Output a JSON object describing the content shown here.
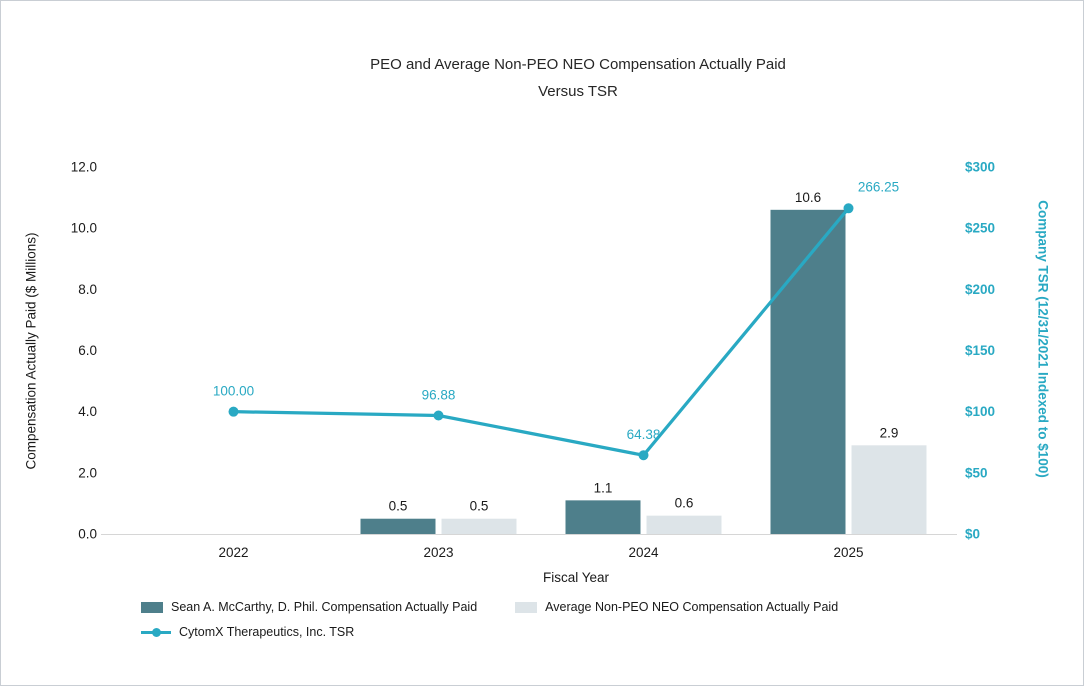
{
  "chart_data": {
    "type": "combo-bar-line",
    "title_line1": "PEO and Average Non-PEO NEO Compensation Actually Paid",
    "title_line2": "Versus TSR",
    "categories": [
      "2022",
      "2023",
      "2024",
      "2025"
    ],
    "bar_series": [
      {
        "name": "Sean A. McCarthy, D. Phil. Compensation Actually Paid",
        "color": "#4e7f8b",
        "values": [
          null,
          0.5,
          1.1,
          10.6
        ],
        "labels": [
          "",
          "0.5",
          "1.1",
          "10.6"
        ]
      },
      {
        "name": "Average Non-PEO NEO Compensation Actually Paid",
        "color": "#dde4e8",
        "values": [
          null,
          0.5,
          0.6,
          2.9
        ],
        "labels": [
          "",
          "0.5",
          "0.6",
          "2.9"
        ]
      }
    ],
    "line_series": {
      "name": "CytomX Therapeutics, Inc. TSR",
      "color": "#29a9c3",
      "values": [
        100.0,
        96.88,
        64.38,
        266.25
      ],
      "labels": [
        "100.00",
        "96.88",
        "64.38",
        "266.25"
      ]
    },
    "left_axis": {
      "title": "Compensation Actually Paid ($ Millions)",
      "min": 0,
      "max": 12,
      "ticks": [
        "0.0",
        "2.0",
        "4.0",
        "6.0",
        "8.0",
        "10.0",
        "12.0"
      ]
    },
    "right_axis": {
      "title": "Company TSR (12/31/2021 Indexed to $100)",
      "min": 0,
      "max": 300,
      "ticks": [
        "$0",
        "$50",
        "$100",
        "$150",
        "$200",
        "$250",
        "$300"
      ],
      "color": "#29a9c3"
    },
    "x_axis": {
      "title": "Fiscal Year"
    },
    "axis_line_color": "#d6d6d6"
  }
}
